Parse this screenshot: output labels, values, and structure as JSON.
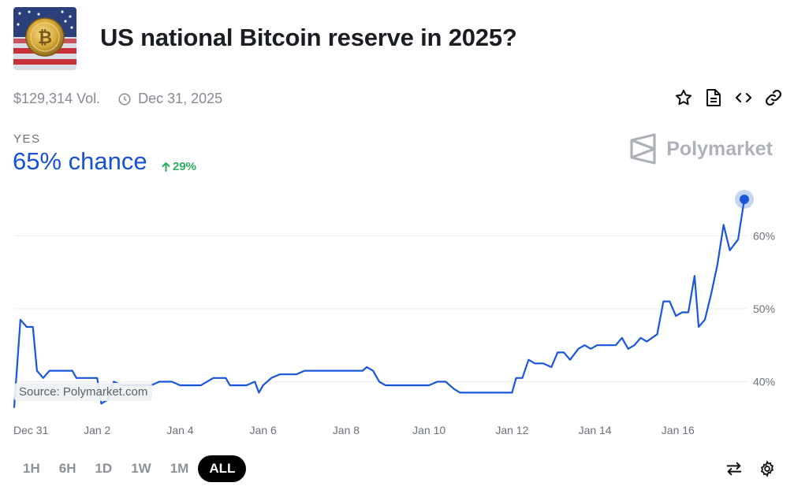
{
  "market": {
    "title": "US national Bitcoin reserve in 2025?",
    "volume": "$129,314 Vol.",
    "end_date": "Dec 31, 2025"
  },
  "outcome": {
    "label": "YES",
    "chance": "65% chance",
    "change": "29%",
    "change_direction": "up"
  },
  "brand": {
    "name": "Polymarket"
  },
  "source_label": "Source: Polymarket.com",
  "icons": {
    "star": "star-icon",
    "document": "document-icon",
    "embed": "code-icon",
    "link": "link-icon",
    "swap": "swap-icon",
    "settings": "gear-icon"
  },
  "time_ranges": [
    {
      "label": "1H",
      "active": false
    },
    {
      "label": "6H",
      "active": false
    },
    {
      "label": "1D",
      "active": false
    },
    {
      "label": "1W",
      "active": false
    },
    {
      "label": "1M",
      "active": false
    },
    {
      "label": "ALL",
      "active": true
    }
  ],
  "colors": {
    "line": "#1a56db",
    "chance": "#1652d9",
    "positive": "#2fae5f",
    "grid": "#ececec"
  },
  "chart_data": {
    "type": "line",
    "series": [
      {
        "points": [
          [
            0.0,
            36.5
          ],
          [
            0.15,
            48.5
          ],
          [
            0.3,
            47.5
          ],
          [
            0.45,
            47.5
          ],
          [
            0.55,
            41.5
          ],
          [
            0.7,
            40.5
          ],
          [
            0.85,
            41.5
          ],
          [
            1.0,
            41.5
          ],
          [
            1.2,
            41.5
          ],
          [
            1.4,
            41.5
          ],
          [
            1.5,
            40.5
          ],
          [
            1.7,
            40.5
          ],
          [
            2.0,
            40.5
          ],
          [
            2.1,
            37.0
          ],
          [
            2.25,
            37.5
          ],
          [
            2.4,
            40.0
          ],
          [
            2.6,
            39.5
          ],
          [
            3.0,
            39.5
          ],
          [
            3.3,
            39.5
          ],
          [
            3.5,
            40.0
          ],
          [
            3.8,
            40.0
          ],
          [
            4.0,
            39.5
          ],
          [
            4.5,
            39.5
          ],
          [
            4.8,
            40.5
          ],
          [
            5.1,
            40.5
          ],
          [
            5.2,
            39.5
          ],
          [
            5.6,
            39.5
          ],
          [
            5.8,
            40.0
          ],
          [
            5.9,
            38.5
          ],
          [
            6.0,
            39.5
          ],
          [
            6.2,
            40.5
          ],
          [
            6.4,
            41.0
          ],
          [
            6.8,
            41.0
          ],
          [
            7.0,
            41.5
          ],
          [
            7.5,
            41.5
          ],
          [
            8.0,
            41.5
          ],
          [
            8.4,
            41.5
          ],
          [
            8.5,
            42.0
          ],
          [
            8.65,
            41.5
          ],
          [
            8.8,
            40.0
          ],
          [
            8.95,
            39.5
          ],
          [
            9.5,
            39.5
          ],
          [
            10.0,
            39.5
          ],
          [
            10.2,
            40.0
          ],
          [
            10.4,
            40.0
          ],
          [
            10.6,
            39.0
          ],
          [
            10.75,
            38.5
          ],
          [
            11.5,
            38.5
          ],
          [
            11.9,
            38.5
          ],
          [
            12.0,
            38.5
          ],
          [
            12.1,
            40.5
          ],
          [
            12.25,
            40.5
          ],
          [
            12.4,
            43.0
          ],
          [
            12.55,
            42.5
          ],
          [
            12.75,
            42.5
          ],
          [
            12.95,
            42.0
          ],
          [
            13.1,
            44.0
          ],
          [
            13.25,
            44.0
          ],
          [
            13.4,
            43.0
          ],
          [
            13.6,
            44.5
          ],
          [
            13.75,
            45.0
          ],
          [
            13.9,
            44.5
          ],
          [
            14.05,
            45.0
          ],
          [
            14.3,
            45.0
          ],
          [
            14.5,
            45.0
          ],
          [
            14.65,
            46.0
          ],
          [
            14.8,
            44.5
          ],
          [
            14.95,
            45.0
          ],
          [
            15.1,
            46.0
          ],
          [
            15.25,
            45.5
          ],
          [
            15.5,
            46.5
          ],
          [
            15.65,
            51.0
          ],
          [
            15.8,
            51.0
          ],
          [
            15.95,
            49.0
          ],
          [
            16.1,
            49.5
          ],
          [
            16.25,
            49.5
          ],
          [
            16.4,
            54.5
          ],
          [
            16.5,
            47.5
          ],
          [
            16.65,
            48.5
          ],
          [
            16.8,
            52.0
          ],
          [
            16.95,
            56.0
          ],
          [
            17.1,
            61.5
          ],
          [
            17.25,
            58.0
          ],
          [
            17.45,
            59.5
          ],
          [
            17.6,
            65.0
          ]
        ],
        "current": 65.0
      }
    ],
    "x_ticks": [
      "Dec 31",
      "Jan 2",
      "Jan 4",
      "Jan 6",
      "Jan 8",
      "Jan 10",
      "Jan 12",
      "Jan 14",
      "Jan 16"
    ],
    "x_tick_values": [
      0,
      2,
      4,
      6,
      8,
      10,
      12,
      14,
      16
    ],
    "y_ticks": [
      "40%",
      "50%",
      "60%"
    ],
    "y_tick_values": [
      40,
      50,
      60
    ],
    "xlim": [
      0,
      17.6
    ],
    "ylim": [
      35.3,
      66.4
    ],
    "grid": true
  }
}
